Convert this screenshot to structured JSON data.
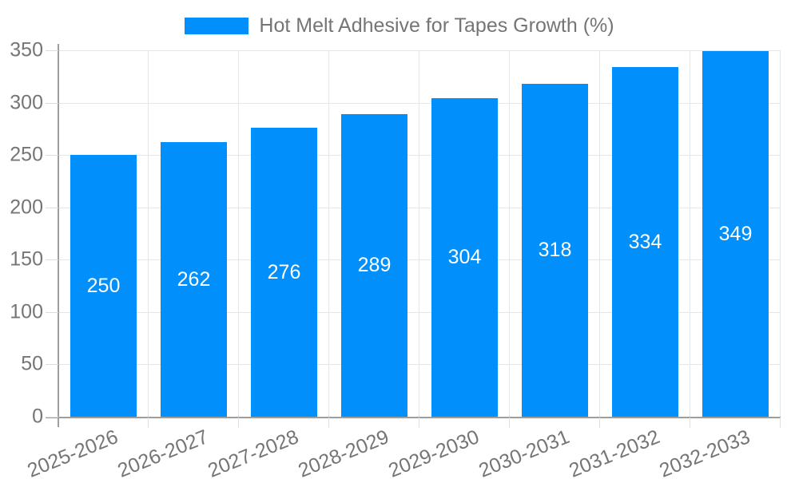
{
  "chart_data": {
    "type": "bar",
    "title": "",
    "legend": "Hot Melt Adhesive for Tapes Growth (%)",
    "legend_position": "top",
    "categories": [
      "2025-2026",
      "2026-2027",
      "2027-2028",
      "2028-2029",
      "2029-2030",
      "2030-2031",
      "2031-2032",
      "2032-2033"
    ],
    "values": [
      250,
      262,
      276,
      289,
      304,
      318,
      334,
      349
    ],
    "bar_value_labels": [
      "250",
      "262",
      "276",
      "289",
      "304",
      "318",
      "334",
      "349"
    ],
    "xlabel": "",
    "ylabel": "",
    "ylim": [
      0,
      350
    ],
    "yticks": [
      0,
      50,
      100,
      150,
      200,
      250,
      300,
      350
    ],
    "grid": "on",
    "colors": {
      "bar": "#008FFB",
      "bar_label_text": "#ffffff",
      "axis_text": "#757575",
      "gridline": "#e6e6e6",
      "axis_line": "#9e9e9e",
      "background": "#ffffff"
    }
  }
}
